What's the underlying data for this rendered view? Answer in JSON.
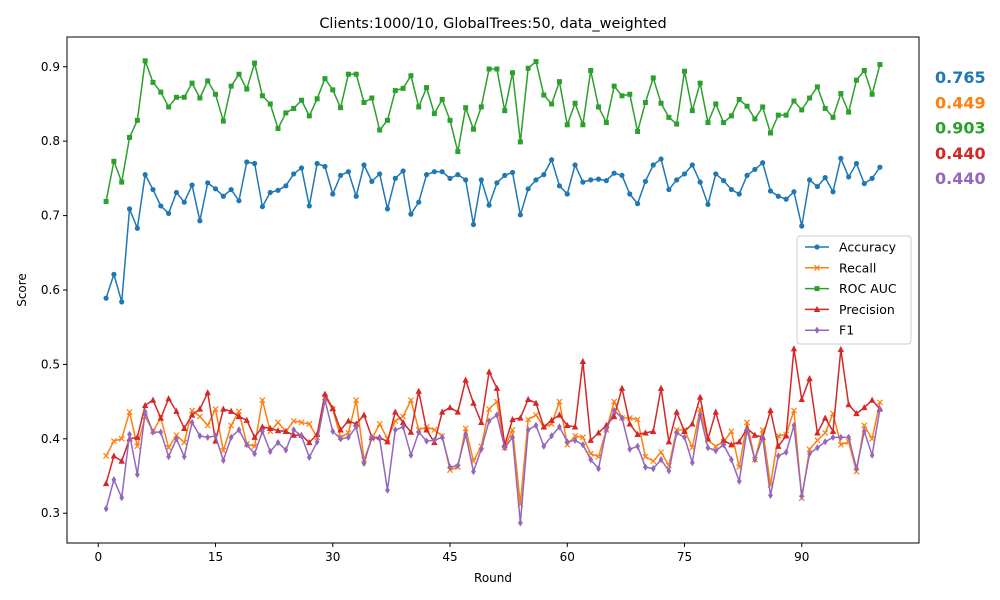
{
  "chart_data": {
    "type": "line",
    "title": "Clients:1000/10, GlobalTrees:50, data_weighted",
    "xlabel": "Round",
    "ylabel": "Score",
    "xlim": [
      -4,
      105
    ],
    "ylim": [
      0.26,
      0.94
    ],
    "xticks": [
      0,
      15,
      30,
      45,
      60,
      75,
      90
    ],
    "yticks": [
      0.3,
      0.4,
      0.5,
      0.6,
      0.7,
      0.8,
      0.9
    ],
    "legend_position": "center-right",
    "grid": false,
    "x_start": 1,
    "series": [
      {
        "name": "Accuracy",
        "color": "#1f77b4",
        "marker": "circle",
        "final_label": "0.765",
        "values": [
          0.589,
          0.621,
          0.584,
          0.709,
          0.683,
          0.755,
          0.735,
          0.713,
          0.703,
          0.731,
          0.718,
          0.741,
          0.693,
          0.744,
          0.736,
          0.726,
          0.735,
          0.72,
          0.772,
          0.77,
          0.712,
          0.731,
          0.734,
          0.74,
          0.756,
          0.764,
          0.713,
          0.77,
          0.766,
          0.729,
          0.754,
          0.759,
          0.726,
          0.768,
          0.746,
          0.756,
          0.709,
          0.75,
          0.76,
          0.702,
          0.718,
          0.755,
          0.759,
          0.759,
          0.75,
          0.755,
          0.748,
          0.688,
          0.748,
          0.714,
          0.744,
          0.754,
          0.758,
          0.701,
          0.736,
          0.748,
          0.755,
          0.775,
          0.74,
          0.729,
          0.768,
          0.745,
          0.748,
          0.749,
          0.747,
          0.757,
          0.754,
          0.729,
          0.716,
          0.746,
          0.768,
          0.776,
          0.735,
          0.748,
          0.756,
          0.768,
          0.745,
          0.715,
          0.756,
          0.747,
          0.735,
          0.729,
          0.754,
          0.762,
          0.771,
          0.733,
          0.726,
          0.722,
          0.732,
          0.686,
          0.748,
          0.739,
          0.751,
          0.732,
          0.777,
          0.752,
          0.77,
          0.743,
          0.75,
          0.765
        ]
      },
      {
        "name": "Recall",
        "color": "#ff7f0e",
        "marker": "x",
        "final_label": "0.449",
        "values": [
          0.377,
          0.397,
          0.4,
          0.436,
          0.39,
          0.43,
          0.41,
          0.428,
          0.388,
          0.405,
          0.395,
          0.438,
          0.43,
          0.418,
          0.44,
          0.384,
          0.418,
          0.437,
          0.393,
          0.39,
          0.452,
          0.41,
          0.422,
          0.41,
          0.424,
          0.422,
          0.42,
          0.402,
          0.456,
          0.44,
          0.402,
          0.408,
          0.452,
          0.372,
          0.4,
          0.42,
          0.4,
          0.424,
          0.43,
          0.452,
          0.412,
          0.416,
          0.412,
          0.404,
          0.358,
          0.362,
          0.414,
          0.37,
          0.39,
          0.44,
          0.45,
          0.388,
          0.412,
          0.312,
          0.426,
          0.432,
          0.416,
          0.42,
          0.45,
          0.392,
          0.404,
          0.402,
          0.38,
          0.376,
          0.412,
          0.45,
          0.428,
          0.428,
          0.426,
          0.376,
          0.37,
          0.382,
          0.364,
          0.412,
          0.412,
          0.388,
          0.44,
          0.398,
          0.39,
          0.396,
          0.41,
          0.362,
          0.422,
          0.372,
          0.412,
          0.338,
          0.404,
          0.406,
          0.438,
          0.32,
          0.386,
          0.398,
          0.408,
          0.434,
          0.392,
          0.396,
          0.356,
          0.418,
          0.4,
          0.449
        ]
      },
      {
        "name": "ROC AUC",
        "color": "#2ca02c",
        "marker": "square",
        "final_label": "0.903",
        "values": [
          0.719,
          0.773,
          0.745,
          0.805,
          0.828,
          0.908,
          0.879,
          0.866,
          0.846,
          0.859,
          0.859,
          0.878,
          0.858,
          0.881,
          0.863,
          0.827,
          0.874,
          0.89,
          0.87,
          0.905,
          0.861,
          0.85,
          0.817,
          0.838,
          0.844,
          0.855,
          0.834,
          0.857,
          0.884,
          0.869,
          0.845,
          0.89,
          0.89,
          0.852,
          0.858,
          0.815,
          0.828,
          0.868,
          0.871,
          0.888,
          0.846,
          0.872,
          0.837,
          0.856,
          0.828,
          0.786,
          0.845,
          0.816,
          0.846,
          0.897,
          0.897,
          0.841,
          0.892,
          0.799,
          0.898,
          0.907,
          0.862,
          0.85,
          0.88,
          0.822,
          0.851,
          0.822,
          0.895,
          0.846,
          0.825,
          0.874,
          0.861,
          0.863,
          0.813,
          0.852,
          0.885,
          0.851,
          0.832,
          0.823,
          0.894,
          0.841,
          0.878,
          0.825,
          0.85,
          0.825,
          0.834,
          0.856,
          0.847,
          0.83,
          0.846,
          0.811,
          0.835,
          0.835,
          0.854,
          0.842,
          0.858,
          0.873,
          0.844,
          0.832,
          0.864,
          0.839,
          0.882,
          0.895,
          0.863,
          0.903
        ]
      },
      {
        "name": "Precision",
        "color": "#d62728",
        "marker": "triangle",
        "final_label": "0.440",
        "values": [
          0.34,
          0.377,
          0.37,
          0.4,
          0.402,
          0.445,
          0.452,
          0.428,
          0.454,
          0.437,
          0.414,
          0.432,
          0.44,
          0.462,
          0.397,
          0.44,
          0.437,
          0.43,
          0.425,
          0.402,
          0.416,
          0.414,
          0.411,
          0.41,
          0.405,
          0.405,
          0.395,
          0.406,
          0.46,
          0.441,
          0.412,
          0.424,
          0.42,
          0.432,
          0.402,
          0.402,
          0.396,
          0.436,
          0.422,
          0.409,
          0.464,
          0.412,
          0.395,
          0.436,
          0.442,
          0.436,
          0.479,
          0.448,
          0.422,
          0.49,
          0.468,
          0.392,
          0.426,
          0.428,
          0.453,
          0.448,
          0.416,
          0.425,
          0.432,
          0.418,
          0.416,
          0.504,
          0.398,
          0.408,
          0.418,
          0.43,
          0.468,
          0.42,
          0.406,
          0.408,
          0.41,
          0.468,
          0.396,
          0.436,
          0.41,
          0.42,
          0.456,
          0.4,
          0.436,
          0.398,
          0.392,
          0.396,
          0.414,
          0.405,
          0.402,
          0.438,
          0.39,
          0.404,
          0.521,
          0.453,
          0.481,
          0.408,
          0.428,
          0.41,
          0.52,
          0.446,
          0.434,
          0.442,
          0.452,
          0.44
        ]
      },
      {
        "name": "F1",
        "color": "#9467bd",
        "marker": "diamond",
        "final_label": "0.440",
        "values": [
          0.306,
          0.345,
          0.321,
          0.406,
          0.352,
          0.436,
          0.409,
          0.409,
          0.376,
          0.4,
          0.376,
          0.422,
          0.404,
          0.402,
          0.404,
          0.371,
          0.402,
          0.412,
          0.392,
          0.38,
          0.41,
          0.383,
          0.395,
          0.385,
          0.412,
          0.404,
          0.375,
          0.396,
          0.452,
          0.41,
          0.4,
          0.402,
          0.416,
          0.367,
          0.402,
          0.4,
          0.331,
          0.412,
          0.416,
          0.378,
          0.409,
          0.397,
          0.398,
          0.402,
          0.362,
          0.364,
          0.406,
          0.356,
          0.386,
          0.424,
          0.432,
          0.388,
          0.402,
          0.287,
          0.412,
          0.418,
          0.39,
          0.404,
          0.416,
          0.396,
          0.398,
          0.392,
          0.372,
          0.36,
          0.412,
          0.438,
          0.428,
          0.386,
          0.39,
          0.362,
          0.36,
          0.372,
          0.357,
          0.408,
          0.402,
          0.368,
          0.432,
          0.388,
          0.384,
          0.392,
          0.372,
          0.343,
          0.412,
          0.372,
          0.402,
          0.324,
          0.377,
          0.382,
          0.418,
          0.323,
          0.38,
          0.388,
          0.396,
          0.402,
          0.402,
          0.402,
          0.36,
          0.41,
          0.378,
          0.44
        ]
      }
    ]
  }
}
